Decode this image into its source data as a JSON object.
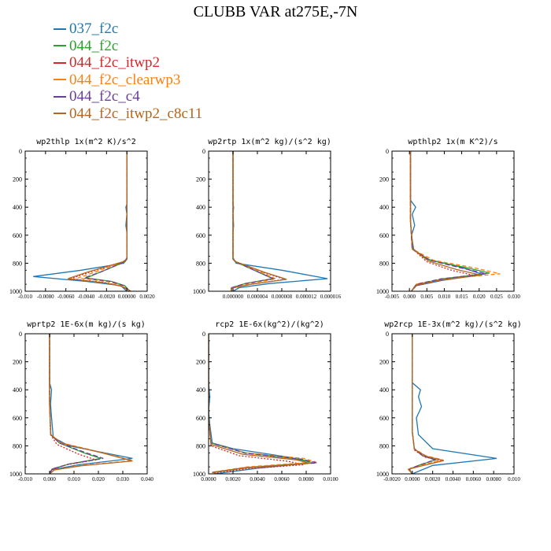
{
  "title": "CLUBB VAR at275E,-7N",
  "legend": [
    {
      "name": "037_f2c",
      "color": "#1f77b4"
    },
    {
      "name": "044_f2c",
      "color": "#2ca02c"
    },
    {
      "name": "044_f2c_itwp2",
      "color": "#d62728"
    },
    {
      "name": "044_f2c_clearwp3",
      "color": "#ff7f0e"
    },
    {
      "name": "044_f2c_c4",
      "color": "#6a3d9a"
    },
    {
      "name": "044_f2c_itwp2_c8c11",
      "color": "#b5651d"
    }
  ],
  "chart_data": [
    {
      "type": "line",
      "title": "wp2thlp  1x(m^2 K)/s^2",
      "xlim": [
        -0.01,
        0.002
      ],
      "ylim": [
        0,
        1000
      ],
      "xticks": [
        -0.01,
        -0.008,
        -0.006,
        -0.004,
        -0.002,
        0.0,
        0.002
      ],
      "xticklabels": [
        "-0.010",
        "-0.0080",
        "-0.0060",
        "-0.0040",
        "-0.0020",
        "0.00000",
        "0.0020"
      ],
      "yticks": [
        0,
        200,
        400,
        600,
        800,
        1000
      ],
      "series": [
        {
          "name": "037_f2c",
          "x": [
            0,
            0,
            -0.0001,
            0,
            -0.0001,
            0,
            0,
            -0.0003,
            -0.0045,
            -0.0092,
            -0.004,
            -0.0006,
            0
          ],
          "y": [
            0,
            380,
            400,
            450,
            530,
            580,
            760,
            800,
            850,
            895,
            930,
            960,
            1000
          ]
        },
        {
          "name": "044_f2c",
          "x": [
            0,
            0,
            0,
            -0.0002,
            -0.0025,
            -0.004,
            -0.0015,
            -0.0002,
            0.0003
          ],
          "y": [
            0,
            500,
            770,
            790,
            860,
            905,
            930,
            960,
            1000
          ]
        },
        {
          "name": "044_f2c_itwp2",
          "x": [
            0,
            0,
            0,
            -0.0003,
            -0.0035,
            -0.0055,
            -0.002,
            -0.0005,
            0.0004
          ],
          "y": [
            0,
            500,
            770,
            790,
            860,
            910,
            940,
            965,
            1000
          ]
        },
        {
          "name": "044_f2c_clearwp3",
          "x": [
            0,
            0,
            0,
            -0.0003,
            -0.003,
            -0.0048,
            -0.0018,
            -0.0004,
            0.0003
          ],
          "y": [
            0,
            500,
            770,
            790,
            860,
            905,
            932,
            962,
            1000
          ]
        },
        {
          "name": "044_f2c_c4",
          "x": [
            0,
            0,
            0,
            -0.0002,
            -0.0025,
            -0.0042,
            -0.0016,
            -0.0003,
            0.0003
          ],
          "y": [
            0,
            500,
            770,
            790,
            860,
            905,
            930,
            960,
            1000
          ]
        },
        {
          "name": "044_f2c_itwp2_c8c11",
          "x": [
            0,
            0,
            0,
            -0.0004,
            -0.0038,
            -0.0058,
            -0.0022,
            -0.0005,
            0.0004
          ],
          "y": [
            0,
            500,
            770,
            790,
            862,
            910,
            940,
            965,
            1000
          ]
        }
      ]
    },
    {
      "type": "line",
      "title": "wp2rtp  1x(m^2 kg)/(s^2 kg)",
      "xlim": [
        -4e-06,
        1.6e-05
      ],
      "ylim": [
        0,
        1000
      ],
      "xticks": [
        0,
        4e-06,
        8e-06,
        1.2e-05,
        1.6e-05
      ],
      "xticklabels": [
        "0.000000",
        "0.000004",
        "0.000008",
        "0.000012",
        "0.000016"
      ],
      "yticks": [
        0,
        200,
        400,
        600,
        800,
        1000
      ],
      "series": [
        {
          "name": "037_f2c",
          "x": [
            0,
            0,
            1e-07,
            0,
            1e-07,
            0,
            0,
            5e-07,
            8e-06,
            1.55e-05,
            6e-06,
            1e-06,
            0
          ],
          "y": [
            0,
            380,
            400,
            450,
            530,
            580,
            760,
            800,
            850,
            910,
            945,
            975,
            1000
          ]
        },
        {
          "name": "044_f2c",
          "x": [
            0,
            0,
            0,
            4e-07,
            4e-06,
            6.5e-06,
            2e-06,
            -2e-07,
            -2e-07
          ],
          "y": [
            0,
            500,
            770,
            790,
            860,
            910,
            945,
            975,
            1000
          ]
        },
        {
          "name": "044_f2c_itwp2",
          "x": [
            0,
            0,
            0,
            5e-07,
            5e-06,
            8.5e-06,
            3e-06,
            -3e-07,
            -3e-07
          ],
          "y": [
            0,
            500,
            770,
            790,
            865,
            915,
            950,
            978,
            1000
          ]
        },
        {
          "name": "044_f2c_clearwp3",
          "x": [
            0,
            0,
            0,
            4e-07,
            4.5e-06,
            7e-06,
            2.5e-06,
            -2e-07,
            -2e-07
          ],
          "y": [
            0,
            500,
            770,
            790,
            862,
            912,
            947,
            976,
            1000
          ]
        },
        {
          "name": "044_f2c_c4",
          "x": [
            0,
            0,
            0,
            4e-07,
            4e-06,
            6.6e-06,
            2e-06,
            -2e-07,
            -2e-07
          ],
          "y": [
            0,
            500,
            770,
            790,
            860,
            910,
            945,
            975,
            1000
          ]
        },
        {
          "name": "044_f2c_itwp2_c8c11",
          "x": [
            0,
            0,
            0,
            5e-07,
            5.2e-06,
            8.8e-06,
            3e-06,
            -3e-07,
            -3e-07
          ],
          "y": [
            0,
            500,
            770,
            790,
            865,
            915,
            950,
            978,
            1000
          ]
        }
      ]
    },
    {
      "type": "line",
      "title": "wpthlp2  1x(m K^2)/s",
      "xlim": [
        -0.005,
        0.03
      ],
      "ylim": [
        0,
        1000
      ],
      "xticks": [
        -0.005,
        0.0,
        0.005,
        0.01,
        0.015,
        0.02,
        0.025,
        0.03
      ],
      "xticklabels": [
        "-0.005",
        "0.000",
        "0.005",
        "0.010",
        "0.015",
        "0.020",
        "0.025",
        "0.030"
      ],
      "yticks": [
        0,
        200,
        400,
        600,
        800,
        1000
      ],
      "series": [
        {
          "name": "037_f2c",
          "x": [
            0.0003,
            0.0003,
            0.0018,
            0.0008,
            0.0015,
            0.0006,
            0.0012,
            0.005,
            0.015,
            0.021,
            0.01,
            0.002,
            0.0005
          ],
          "y": [
            0,
            350,
            400,
            450,
            530,
            600,
            700,
            770,
            830,
            880,
            920,
            960,
            1000
          ]
        },
        {
          "name": "044_f2c",
          "x": [
            0.0003,
            0.0003,
            0.0008,
            0.006,
            0.016,
            0.023,
            0.01,
            0.002,
            0.0005
          ],
          "y": [
            0,
            500,
            700,
            780,
            830,
            870,
            910,
            950,
            1000
          ]
        },
        {
          "name": "044_f2c_itwp2",
          "x": [
            0.0003,
            0.0003,
            0.001,
            0.005,
            0.012,
            0.019,
            0.008,
            0.002,
            0.0005
          ],
          "y": [
            0,
            500,
            700,
            790,
            850,
            890,
            925,
            960,
            1000
          ]
        },
        {
          "name": "044_f2c_clearwp3",
          "x": [
            0.0003,
            0.0003,
            0.0009,
            0.007,
            0.018,
            0.026,
            0.011,
            0.002,
            0.0005
          ],
          "y": [
            0,
            500,
            700,
            780,
            830,
            875,
            910,
            950,
            1000
          ]
        },
        {
          "name": "044_f2c_c4",
          "x": [
            0.0003,
            0.0003,
            0.0008,
            0.006,
            0.015,
            0.022,
            0.009,
            0.002,
            0.0005
          ],
          "y": [
            0,
            500,
            700,
            780,
            835,
            875,
            912,
            950,
            1000
          ]
        },
        {
          "name": "044_f2c_itwp2_c8c11",
          "x": [
            0.0003,
            0.0003,
            0.001,
            0.0055,
            0.0135,
            0.0205,
            0.009,
            0.002,
            0.0005
          ],
          "y": [
            0,
            500,
            700,
            785,
            845,
            885,
            920,
            955,
            1000
          ]
        }
      ]
    },
    {
      "type": "line",
      "title": "wprtp2  1E-6x(m kg)/(s kg)",
      "xlim": [
        -0.01,
        0.04
      ],
      "ylim": [
        0,
        1000
      ],
      "xticks": [
        -0.01,
        0.0,
        0.01,
        0.02,
        0.03,
        0.04
      ],
      "xticklabels": [
        "-0.010",
        "0.000",
        "0.010",
        "0.020",
        "0.030",
        "0.040"
      ],
      "yticks": [
        0,
        200,
        400,
        600,
        800,
        1000
      ],
      "series": [
        {
          "name": "037_f2c",
          "x": [
            0,
            0,
            0.0008,
            0.0004,
            0.0008,
            0.0015,
            0.008,
            0.034,
            0.012,
            0.001,
            0
          ],
          "y": [
            0,
            350,
            400,
            500,
            600,
            740,
            800,
            890,
            935,
            970,
            1000
          ]
        },
        {
          "name": "044_f2c",
          "x": [
            0,
            0,
            0.0005,
            0.004,
            0.014,
            0.021,
            0.008,
            0.001,
            0
          ],
          "y": [
            0,
            500,
            720,
            780,
            850,
            890,
            930,
            965,
            1000
          ]
        },
        {
          "name": "044_f2c_itwp2",
          "x": [
            0,
            0,
            0.0004,
            0.003,
            0.012,
            0.019,
            0.007,
            0.001,
            0
          ],
          "y": [
            0,
            500,
            720,
            790,
            860,
            900,
            935,
            968,
            1000
          ]
        },
        {
          "name": "044_f2c_clearwp3",
          "x": [
            0,
            0,
            0.0005,
            0.005,
            0.022,
            0.034,
            0.013,
            0.002,
            0
          ],
          "y": [
            0,
            500,
            720,
            780,
            850,
            905,
            940,
            970,
            1000
          ]
        },
        {
          "name": "044_f2c_c4",
          "x": [
            0,
            0,
            0.0005,
            0.004,
            0.015,
            0.022,
            0.008,
            0.001,
            0
          ],
          "y": [
            0,
            500,
            720,
            780,
            850,
            890,
            930,
            965,
            1000
          ]
        },
        {
          "name": "044_f2c_itwp2_c8c11",
          "x": [
            0,
            0,
            0.0005,
            0.005,
            0.022,
            0.034,
            0.013,
            0.002,
            0
          ],
          "y": [
            0,
            500,
            720,
            782,
            852,
            908,
            942,
            972,
            1000
          ]
        }
      ]
    },
    {
      "type": "line",
      "title": "rcp2  1E-6x(kg^2)/(kg^2)",
      "xlim": [
        0,
        0.01
      ],
      "ylim": [
        0,
        1000
      ],
      "xticks": [
        0,
        0.002,
        0.004,
        0.006,
        0.008,
        0.01
      ],
      "xticklabels": [
        "0.0000",
        "0.0020",
        "0.0040",
        "0.0060",
        "0.0080",
        "0.0100"
      ],
      "yticks": [
        0,
        200,
        400,
        600,
        800,
        1000
      ],
      "series": [
        {
          "name": "037_f2c",
          "x": [
            0,
            0,
            0.0001,
            0,
            0.0001,
            0.0003,
            0.002,
            0.0065,
            0.0085,
            0.004,
            0.0005
          ],
          "y": [
            0,
            350,
            450,
            550,
            650,
            780,
            820,
            880,
            920,
            960,
            1000
          ]
        },
        {
          "name": "044_f2c",
          "x": [
            0,
            0,
            0.0002,
            0.003,
            0.0075,
            0.0085,
            0.003,
            0.0003
          ],
          "y": [
            0,
            600,
            780,
            850,
            895,
            920,
            955,
            990
          ]
        },
        {
          "name": "044_f2c_itwp2",
          "x": [
            0,
            0,
            0.0002,
            0.0025,
            0.0065,
            0.0078,
            0.003,
            0.0003
          ],
          "y": [
            0,
            600,
            800,
            870,
            910,
            935,
            965,
            995
          ]
        },
        {
          "name": "044_f2c_clearwp3",
          "x": [
            0,
            0,
            0.0002,
            0.003,
            0.0078,
            0.0088,
            0.0032,
            0.0003
          ],
          "y": [
            0,
            600,
            780,
            850,
            890,
            915,
            950,
            988
          ]
        },
        {
          "name": "044_f2c_c4",
          "x": [
            0,
            0,
            0.0002,
            0.003,
            0.0076,
            0.0089,
            0.0032,
            0.0003
          ],
          "y": [
            0,
            600,
            780,
            852,
            895,
            922,
            956,
            990
          ]
        },
        {
          "name": "044_f2c_itwp2_c8c11",
          "x": [
            0,
            0,
            0.0002,
            0.0028,
            0.0072,
            0.0083,
            0.003,
            0.0003
          ],
          "y": [
            0,
            600,
            790,
            860,
            900,
            925,
            958,
            992
          ]
        }
      ]
    },
    {
      "type": "line",
      "title": "wp2rcp  1E-3x(m^2 kg)/(s^2 kg)",
      "xlim": [
        -0.002,
        0.01
      ],
      "ylim": [
        0,
        1000
      ],
      "xticks": [
        -0.002,
        0.0,
        0.002,
        0.004,
        0.006,
        0.008,
        0.01
      ],
      "xticklabels": [
        "-0.0020",
        "0.0000",
        "0.0020",
        "0.0040",
        "0.0060",
        "0.0080",
        "0.010"
      ],
      "yticks": [
        0,
        200,
        400,
        600,
        800,
        1000
      ],
      "series": [
        {
          "name": "037_f2c",
          "x": [
            0,
            0,
            0.0008,
            0.0006,
            0.0009,
            0.0004,
            0.0006,
            0.002,
            0.0083,
            0.002,
            0
          ],
          "y": [
            0,
            350,
            400,
            450,
            520,
            600,
            720,
            820,
            890,
            940,
            1000
          ]
        },
        {
          "name": "044_f2c",
          "x": [
            0,
            0,
            0.0002,
            0.001,
            0.0023,
            0.0008,
            -0.0003,
            0
          ],
          "y": [
            0,
            700,
            820,
            870,
            900,
            935,
            965,
            1000
          ]
        },
        {
          "name": "044_f2c_itwp2",
          "x": [
            0,
            0,
            0.0002,
            0.0012,
            0.0028,
            0.001,
            -0.0004,
            0
          ],
          "y": [
            0,
            700,
            830,
            880,
            905,
            940,
            968,
            1000
          ]
        },
        {
          "name": "044_f2c_clearwp3",
          "x": [
            0,
            0,
            0.0002,
            0.0013,
            0.003,
            0.0011,
            -0.0004,
            0
          ],
          "y": [
            0,
            700,
            820,
            870,
            900,
            935,
            965,
            1000
          ]
        },
        {
          "name": "044_f2c_c4",
          "x": [
            0,
            0,
            0.0002,
            0.001,
            0.0022,
            0.0008,
            -0.0003,
            0
          ],
          "y": [
            0,
            700,
            820,
            870,
            900,
            935,
            965,
            1000
          ]
        },
        {
          "name": "044_f2c_itwp2_c8c11",
          "x": [
            0,
            0,
            0.0002,
            0.0014,
            0.0031,
            0.0012,
            -0.0004,
            0
          ],
          "y": [
            0,
            700,
            825,
            875,
            905,
            938,
            967,
            1000
          ]
        }
      ]
    }
  ]
}
